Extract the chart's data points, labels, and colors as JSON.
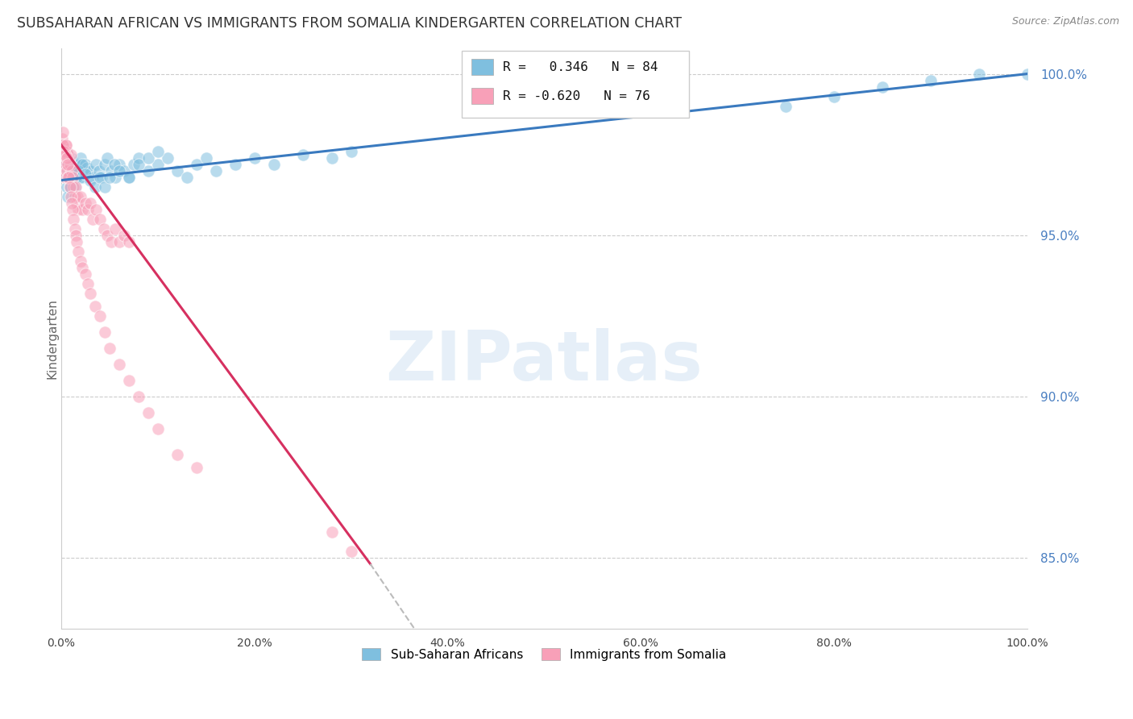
{
  "title": "SUBSAHARAN AFRICAN VS IMMIGRANTS FROM SOMALIA KINDERGARTEN CORRELATION CHART",
  "source": "Source: ZipAtlas.com",
  "ylabel": "Kindergarten",
  "watermark": "ZIPatlas",
  "legend_blue_label": "Sub-Saharan Africans",
  "legend_pink_label": "Immigrants from Somalia",
  "R_blue": 0.346,
  "N_blue": 84,
  "R_pink": -0.62,
  "N_pink": 76,
  "blue_color": "#7fbfdf",
  "pink_color": "#f8a0b8",
  "trendline_blue_color": "#3a7abf",
  "trendline_pink_color": "#d63060",
  "trendline_pink_dashed_color": "#bbbbbb",
  "background_color": "#ffffff",
  "xlim": [
    0.0,
    1.0
  ],
  "ylim": [
    0.828,
    1.008
  ],
  "ytick_values": [
    0.85,
    0.9,
    0.95,
    1.0
  ],
  "ytick_labels": [
    "85.0%",
    "90.0%",
    "95.0%",
    "100.0%"
  ],
  "xtick_values": [
    0.0,
    0.2,
    0.4,
    0.6,
    0.8,
    1.0
  ],
  "xtick_labels": [
    "0.0%",
    "20.0%",
    "40.0%",
    "60.0%",
    "80.0%",
    "100.0%"
  ],
  "blue_scatter_x": [
    0.001,
    0.002,
    0.003,
    0.003,
    0.004,
    0.005,
    0.005,
    0.006,
    0.007,
    0.007,
    0.008,
    0.009,
    0.01,
    0.011,
    0.012,
    0.013,
    0.014,
    0.015,
    0.016,
    0.017,
    0.018,
    0.019,
    0.02,
    0.022,
    0.023,
    0.025,
    0.027,
    0.03,
    0.033,
    0.036,
    0.039,
    0.042,
    0.045,
    0.048,
    0.052,
    0.056,
    0.06,
    0.065,
    0.07,
    0.075,
    0.08,
    0.09,
    0.1,
    0.11,
    0.12,
    0.13,
    0.14,
    0.15,
    0.16,
    0.18,
    0.2,
    0.22,
    0.25,
    0.28,
    0.3,
    0.006,
    0.007,
    0.008,
    0.009,
    0.01,
    0.012,
    0.014,
    0.016,
    0.018,
    0.02,
    0.022,
    0.025,
    0.03,
    0.035,
    0.04,
    0.045,
    0.05,
    0.055,
    0.06,
    0.07,
    0.08,
    0.09,
    0.1,
    0.75,
    1.0,
    0.8,
    0.85,
    0.9,
    0.95
  ],
  "blue_scatter_y": [
    0.975,
    0.973,
    0.972,
    0.97,
    0.974,
    0.971,
    0.968,
    0.972,
    0.975,
    0.97,
    0.974,
    0.971,
    0.974,
    0.969,
    0.973,
    0.97,
    0.968,
    0.972,
    0.971,
    0.97,
    0.969,
    0.972,
    0.974,
    0.97,
    0.968,
    0.972,
    0.971,
    0.97,
    0.968,
    0.972,
    0.97,
    0.968,
    0.972,
    0.974,
    0.97,
    0.968,
    0.972,
    0.97,
    0.968,
    0.972,
    0.974,
    0.97,
    0.972,
    0.974,
    0.97,
    0.968,
    0.972,
    0.974,
    0.97,
    0.972,
    0.974,
    0.972,
    0.975,
    0.974,
    0.976,
    0.965,
    0.962,
    0.968,
    0.965,
    0.97,
    0.968,
    0.965,
    0.968,
    0.97,
    0.968,
    0.972,
    0.969,
    0.967,
    0.965,
    0.968,
    0.965,
    0.968,
    0.972,
    0.97,
    0.968,
    0.972,
    0.974,
    0.976,
    0.99,
    1.0,
    0.993,
    0.996,
    0.998,
    1.0
  ],
  "pink_scatter_x": [
    0.001,
    0.001,
    0.002,
    0.002,
    0.003,
    0.003,
    0.004,
    0.004,
    0.005,
    0.005,
    0.006,
    0.006,
    0.007,
    0.007,
    0.008,
    0.009,
    0.01,
    0.011,
    0.012,
    0.013,
    0.014,
    0.015,
    0.016,
    0.017,
    0.018,
    0.02,
    0.022,
    0.025,
    0.028,
    0.03,
    0.033,
    0.036,
    0.04,
    0.044,
    0.048,
    0.052,
    0.056,
    0.06,
    0.065,
    0.07,
    0.001,
    0.002,
    0.002,
    0.003,
    0.004,
    0.005,
    0.006,
    0.007,
    0.008,
    0.009,
    0.01,
    0.011,
    0.012,
    0.013,
    0.014,
    0.015,
    0.016,
    0.018,
    0.02,
    0.022,
    0.025,
    0.028,
    0.03,
    0.035,
    0.04,
    0.045,
    0.05,
    0.06,
    0.07,
    0.08,
    0.09,
    0.1,
    0.12,
    0.14,
    0.28,
    0.3
  ],
  "pink_scatter_y": [
    0.977,
    0.975,
    0.978,
    0.972,
    0.976,
    0.97,
    0.975,
    0.968,
    0.978,
    0.972,
    0.976,
    0.97,
    0.975,
    0.968,
    0.974,
    0.972,
    0.975,
    0.97,
    0.968,
    0.965,
    0.962,
    0.965,
    0.96,
    0.962,
    0.958,
    0.962,
    0.958,
    0.96,
    0.958,
    0.96,
    0.955,
    0.958,
    0.955,
    0.952,
    0.95,
    0.948,
    0.952,
    0.948,
    0.95,
    0.948,
    0.98,
    0.982,
    0.978,
    0.976,
    0.975,
    0.978,
    0.974,
    0.972,
    0.968,
    0.965,
    0.962,
    0.96,
    0.958,
    0.955,
    0.952,
    0.95,
    0.948,
    0.945,
    0.942,
    0.94,
    0.938,
    0.935,
    0.932,
    0.928,
    0.925,
    0.92,
    0.915,
    0.91,
    0.905,
    0.9,
    0.895,
    0.89,
    0.882,
    0.878,
    0.858,
    0.852
  ],
  "pink_trendline_x0": 0.0,
  "pink_trendline_y0": 0.978,
  "pink_trendline_x_solid_end": 0.32,
  "pink_trendline_y_solid_end": 0.848,
  "pink_trendline_x_dash_end": 0.52,
  "pink_trendline_y_dash_end": 0.76,
  "blue_trendline_x0": 0.0,
  "blue_trendline_y0": 0.967,
  "blue_trendline_x1": 1.0,
  "blue_trendline_y1": 1.0
}
